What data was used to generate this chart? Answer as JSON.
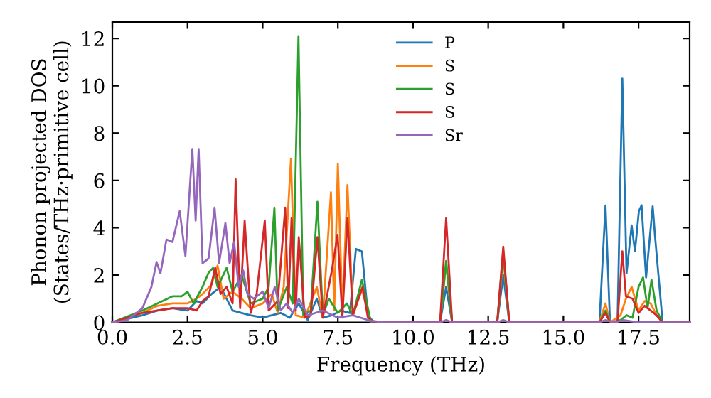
{
  "chart_data": {
    "type": "line",
    "xlabel": "Frequency (THz)",
    "ylabel": "Phonon projected DOS\n(States/THz·primitive cell)",
    "xlim": [
      0,
      19.2
    ],
    "ylim": [
      0,
      12.7
    ],
    "xticks": [
      {
        "value": 0,
        "label": "0.0"
      },
      {
        "value": 2.5,
        "label": "2.5"
      },
      {
        "value": 5,
        "label": "5.0"
      },
      {
        "value": 7.5,
        "label": "7.5"
      },
      {
        "value": 10,
        "label": "10.0"
      },
      {
        "value": 12.5,
        "label": "12.5"
      },
      {
        "value": 15,
        "label": "15.0"
      },
      {
        "value": 17.5,
        "label": "17.5"
      }
    ],
    "yticks": [
      0,
      2,
      4,
      6,
      8,
      10,
      12
    ],
    "grid": false,
    "legend": "top",
    "marker": "none",
    "line_style": "solid",
    "series": [
      {
        "name": "P",
        "color": "#1f77b4",
        "x": [
          0,
          1.0,
          1.5,
          2.0,
          2.5,
          2.8,
          3.0,
          3.3,
          3.6,
          3.8,
          4.0,
          4.3,
          4.6,
          5.0,
          5.3,
          5.6,
          5.9,
          6.2,
          6.5,
          6.8,
          7.0,
          7.3,
          7.6,
          7.9,
          8.1,
          8.3,
          8.5,
          8.7,
          10.9,
          11.1,
          11.3,
          12.8,
          13.0,
          13.2,
          16.2,
          16.4,
          16.55,
          16.8,
          16.96,
          17.1,
          17.27,
          17.38,
          17.51,
          17.6,
          17.75,
          17.97,
          18.05,
          18.3,
          19.2
        ],
        "values": [
          0,
          0.3,
          0.5,
          0.6,
          0.5,
          0.9,
          0.8,
          1.2,
          1.5,
          1.0,
          0.5,
          0.4,
          0.3,
          0.2,
          0.3,
          0.4,
          0.2,
          0.8,
          0.1,
          1.0,
          0.2,
          0.3,
          0.5,
          0.4,
          3.1,
          3.0,
          0.3,
          0,
          0,
          1.5,
          0,
          0,
          2.0,
          0,
          0,
          4.94,
          0,
          0,
          10.3,
          2.07,
          4.1,
          3.0,
          4.7,
          4.95,
          1.9,
          4.9,
          3.6,
          0,
          0
        ]
      },
      {
        "name": "S",
        "color": "#ff7f0e",
        "x": [
          0,
          1.0,
          1.5,
          2.0,
          2.5,
          2.8,
          3.0,
          3.3,
          3.5,
          3.7,
          4.0,
          4.3,
          4.6,
          5.0,
          5.3,
          5.5,
          5.7,
          5.94,
          6.1,
          6.4,
          6.8,
          7.0,
          7.27,
          7.38,
          7.5,
          7.65,
          7.82,
          8.0,
          8.3,
          8.6,
          10.9,
          11.1,
          11.3,
          12.8,
          13.0,
          13.2,
          16.2,
          16.4,
          16.55,
          16.9,
          17.08,
          17.27,
          17.5,
          17.7,
          17.9,
          18.1,
          18.3,
          19.2
        ],
        "values": [
          0,
          0.4,
          0.7,
          0.8,
          0.8,
          1.0,
          1.2,
          1.6,
          2.4,
          1.0,
          1.3,
          1.0,
          0.6,
          0.8,
          1.2,
          0.4,
          1.5,
          6.9,
          0.3,
          0.2,
          1.5,
          0.2,
          5.5,
          0.5,
          6.7,
          0.4,
          5.8,
          0.3,
          1.4,
          0,
          0,
          2.5,
          0,
          0,
          2.8,
          0,
          0,
          0.8,
          0,
          0.3,
          1.0,
          1.5,
          0.5,
          0.9,
          0.8,
          0.3,
          0,
          0
        ]
      },
      {
        "name": "S",
        "color": "#2ca02c",
        "x": [
          0,
          1.0,
          1.5,
          2.0,
          2.3,
          2.5,
          2.7,
          3.0,
          3.2,
          3.35,
          3.5,
          3.8,
          4.0,
          4.3,
          4.6,
          5.0,
          5.2,
          5.39,
          5.5,
          5.8,
          6.0,
          6.19,
          6.35,
          6.6,
          6.82,
          7.0,
          7.2,
          7.5,
          7.8,
          8.0,
          8.3,
          8.6,
          10.9,
          11.1,
          11.3,
          12.8,
          13.0,
          13.2,
          16.2,
          16.4,
          16.55,
          16.9,
          17.1,
          17.3,
          17.5,
          17.65,
          17.8,
          17.93,
          18.1,
          18.3,
          19.2
        ],
        "values": [
          0,
          0.5,
          0.8,
          1.1,
          1.1,
          1.3,
          0.8,
          1.5,
          2.1,
          2.3,
          1.5,
          2.3,
          1.3,
          2.0,
          0.8,
          1.0,
          1.5,
          4.85,
          0.5,
          1.5,
          0.8,
          12.1,
          0.3,
          0.5,
          5.1,
          0.3,
          1.0,
          0.4,
          0.8,
          0.3,
          1.8,
          0,
          0,
          2.6,
          0,
          0,
          3.0,
          0,
          0,
          0.5,
          0,
          0.1,
          0.3,
          0.2,
          1.5,
          1.9,
          0.6,
          1.8,
          0.5,
          0,
          0
        ]
      },
      {
        "name": "S",
        "color": "#d62728",
        "x": [
          0,
          1.0,
          1.5,
          2.0,
          2.5,
          2.8,
          3.0,
          3.2,
          3.42,
          3.6,
          3.8,
          4.0,
          4.1,
          4.25,
          4.4,
          4.6,
          4.8,
          5.07,
          5.2,
          5.5,
          5.75,
          5.85,
          5.96,
          6.1,
          6.2,
          6.4,
          6.6,
          6.82,
          7.0,
          7.3,
          7.49,
          7.65,
          7.82,
          8.0,
          8.32,
          8.5,
          8.7,
          10.9,
          11.1,
          11.3,
          12.8,
          13.0,
          13.2,
          16.2,
          16.4,
          16.55,
          16.8,
          16.96,
          17.08,
          17.3,
          17.5,
          17.7,
          17.9,
          18.1,
          18.3,
          19.2
        ],
        "values": [
          0,
          0.4,
          0.5,
          0.6,
          0.6,
          0.5,
          0.9,
          1.1,
          2.3,
          1.2,
          1.5,
          0.8,
          6.05,
          0.6,
          4.3,
          0.4,
          1.2,
          4.3,
          0.5,
          0.9,
          4.85,
          0.6,
          4.4,
          0.5,
          3.6,
          0.2,
          0.3,
          3.6,
          0.2,
          2.2,
          3.7,
          0.2,
          4.4,
          0.3,
          1.5,
          0.2,
          0,
          0,
          4.4,
          0,
          0,
          3.2,
          0,
          0,
          0.4,
          0,
          0,
          3.0,
          1.1,
          1.0,
          0.4,
          0.7,
          0.5,
          0.3,
          0,
          0
        ]
      },
      {
        "name": "Sr",
        "color": "#9467bd",
        "x": [
          0,
          0.5,
          1.0,
          1.3,
          1.47,
          1.6,
          1.8,
          2.0,
          2.24,
          2.43,
          2.66,
          2.77,
          2.87,
          3.0,
          3.2,
          3.4,
          3.55,
          3.76,
          3.9,
          4.05,
          4.2,
          4.35,
          4.5,
          4.7,
          5.0,
          5.2,
          5.4,
          5.6,
          5.8,
          6.0,
          6.2,
          6.5,
          7.0,
          7.5,
          8.0,
          8.5,
          9.0,
          10.9,
          11.1,
          11.3,
          12.8,
          13.0,
          13.2,
          16.2,
          16.4,
          16.7,
          17.0,
          17.5,
          18.3,
          19.2
        ],
        "values": [
          0,
          0.1,
          0.6,
          1.5,
          2.55,
          2.07,
          3.5,
          3.4,
          4.7,
          2.8,
          7.33,
          4.3,
          7.33,
          2.5,
          2.7,
          4.85,
          2.5,
          4.2,
          2.5,
          3.4,
          1.5,
          2.2,
          1.2,
          1.0,
          1.3,
          0.6,
          1.5,
          0.5,
          0.8,
          0.4,
          1.0,
          0.3,
          0.5,
          0.2,
          0.3,
          0.1,
          0,
          0,
          0.1,
          0,
          0,
          0.1,
          0,
          0,
          0.1,
          0,
          0.1,
          0,
          0,
          0
        ]
      }
    ]
  }
}
